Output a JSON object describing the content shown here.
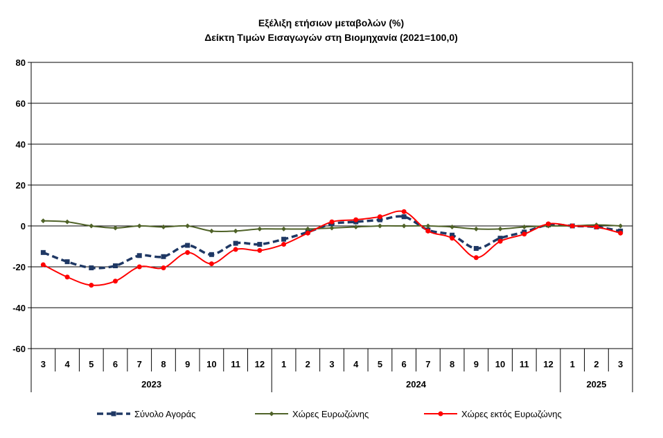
{
  "chart_data": {
    "type": "line",
    "title": "Εξέλιξη ετήσιων μεταβολών (%)",
    "subtitle": "Δείκτη Τιμών Εισαγωγών στη Βιομηχανία (2021=100,0)",
    "categories": [
      "3",
      "4",
      "5",
      "6",
      "7",
      "8",
      "9",
      "10",
      "11",
      "12",
      "1",
      "2",
      "3",
      "4",
      "5",
      "6",
      "7",
      "8",
      "9",
      "10",
      "11",
      "12",
      "1",
      "2",
      "3"
    ],
    "year_groups": [
      {
        "label": "2023",
        "start": 0,
        "count": 10
      },
      {
        "label": "2024",
        "start": 10,
        "count": 12
      },
      {
        "label": "2025",
        "start": 22,
        "count": 3
      }
    ],
    "ylim": [
      -60,
      80
    ],
    "yticks": [
      80,
      60,
      40,
      20,
      0,
      -20,
      -40,
      -60
    ],
    "grid": true,
    "legend": "bottom",
    "series": [
      {
        "name": "Σύνολο Αγοράς",
        "color": "#1f3864",
        "style": "dashed-square",
        "values": [
          -13,
          -17.5,
          -20.5,
          -19.5,
          -14.5,
          -15,
          -9.5,
          -14,
          -8.5,
          -9,
          -6.5,
          -3,
          1,
          2,
          3,
          4.5,
          -2,
          -4.5,
          -11,
          -6,
          -3,
          0.5,
          0,
          -0.5,
          -2.5
        ]
      },
      {
        "name": "Χώρες Ευρωζώνης",
        "color": "#4f6228",
        "style": "solid-diamond",
        "values": [
          2.5,
          2,
          0,
          -1,
          0,
          -0.5,
          0,
          -2.5,
          -2.5,
          -1.5,
          -1.5,
          -1.5,
          -1,
          -0.5,
          0,
          0,
          0,
          -0.5,
          -1.5,
          -1.5,
          -0.5,
          0,
          0,
          0.5,
          0
        ]
      },
      {
        "name": "Χώρες εκτός Ευρωζώνης",
        "color": "#ff0000",
        "style": "solid-circle",
        "values": [
          -19,
          -25,
          -29,
          -27,
          -20,
          -20.5,
          -13,
          -18.5,
          -11.5,
          -12,
          -9,
          -3.5,
          2,
          3,
          4.5,
          7,
          -2.5,
          -6,
          -15.5,
          -7.5,
          -4,
          1,
          0,
          -0.5,
          -3.5
        ]
      }
    ]
  }
}
